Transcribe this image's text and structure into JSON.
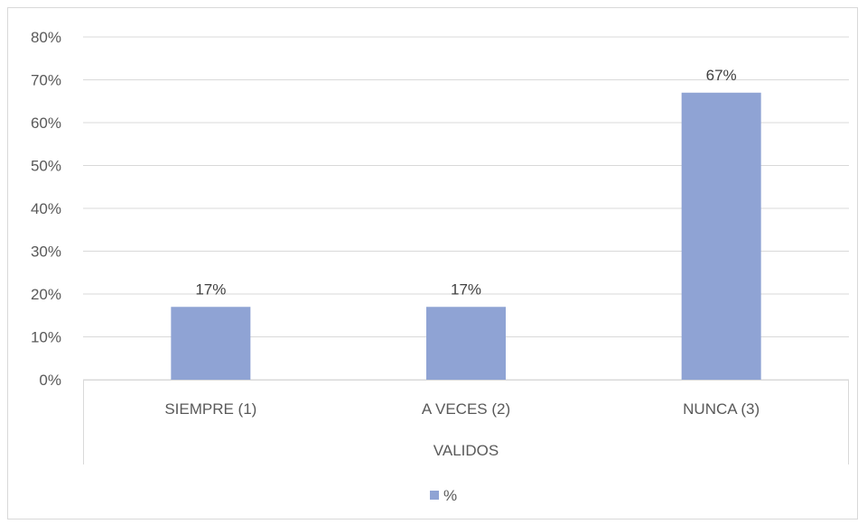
{
  "chart_data": {
    "type": "bar",
    "categories": [
      "SIEMPRE (1)",
      "A VECES (2)",
      "NUNCA (3)"
    ],
    "group_label": "VALIDOS",
    "series": [
      {
        "name": "%",
        "values": [
          0.17,
          0.17,
          0.67
        ],
        "data_labels": [
          "17%",
          "17%",
          "67%"
        ],
        "color": "#8fa3d4"
      }
    ],
    "y_ticks": [
      "0%",
      "10%",
      "20%",
      "30%",
      "40%",
      "50%",
      "60%",
      "70%",
      "80%"
    ],
    "ylim": [
      0,
      0.8
    ],
    "grid": true,
    "legend_position": "bottom"
  }
}
